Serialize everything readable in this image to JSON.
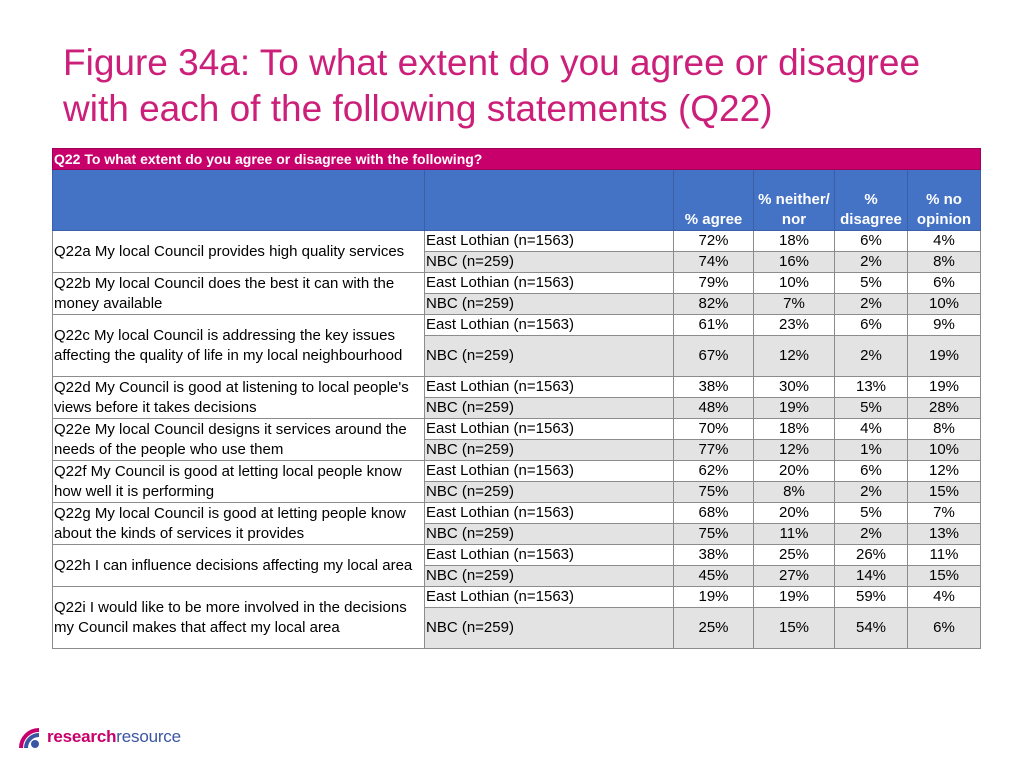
{
  "title": "Figure 34a: To what extent do you agree or disagree with each of the following statements (Q22)",
  "table": {
    "header_title": "Q22 To what extent do you agree or disagree with the following?",
    "columns": [
      "% agree",
      "% neither/ nor",
      "% disagree",
      "% no opinion"
    ],
    "rows": [
      {
        "question": "Q22a My local Council provides high quality services",
        "groups": [
          {
            "label": "East Lothian (n=1563)",
            "values": [
              "72%",
              "18%",
              "6%",
              "4%"
            ]
          },
          {
            "label": "NBC (n=259)",
            "values": [
              "74%",
              "16%",
              "2%",
              "8%"
            ]
          }
        ]
      },
      {
        "question": "Q22b My local Council does the best it can with the money available",
        "groups": [
          {
            "label": "East Lothian (n=1563)",
            "values": [
              "79%",
              "10%",
              "5%",
              "6%"
            ]
          },
          {
            "label": "NBC (n=259)",
            "values": [
              "82%",
              "7%",
              "2%",
              "10%"
            ]
          }
        ]
      },
      {
        "question": "Q22c My local Council is addressing the key issues affecting the quality of life in my local neighbourhood",
        "groups": [
          {
            "label": "East Lothian (n=1563)",
            "values": [
              "61%",
              "23%",
              "6%",
              "9%"
            ]
          },
          {
            "label": "NBC (n=259)",
            "values": [
              "67%",
              "12%",
              "2%",
              "19%"
            ]
          }
        ]
      },
      {
        "question": "Q22d My Council is good at listening to local people's views before it takes decisions",
        "groups": [
          {
            "label": "East Lothian (n=1563)",
            "values": [
              "38%",
              "30%",
              "13%",
              "19%"
            ]
          },
          {
            "label": "NBC (n=259)",
            "values": [
              "48%",
              "19%",
              "5%",
              "28%"
            ]
          }
        ]
      },
      {
        "question": "Q22e My local Council designs it services around the needs of the people who use them",
        "groups": [
          {
            "label": "East Lothian (n=1563)",
            "values": [
              "70%",
              "18%",
              "4%",
              "8%"
            ]
          },
          {
            "label": "NBC (n=259)",
            "values": [
              "77%",
              "12%",
              "1%",
              "10%"
            ]
          }
        ]
      },
      {
        "question": "Q22f My Council is good at letting local people know how well it is performing",
        "groups": [
          {
            "label": "East Lothian (n=1563)",
            "values": [
              "62%",
              "20%",
              "6%",
              "12%"
            ]
          },
          {
            "label": "NBC (n=259)",
            "values": [
              "75%",
              "8%",
              "2%",
              "15%"
            ]
          }
        ]
      },
      {
        "question": "Q22g My local Council is good at letting people know about the kinds of services it provides",
        "groups": [
          {
            "label": "East Lothian (n=1563)",
            "values": [
              "68%",
              "20%",
              "5%",
              "7%"
            ]
          },
          {
            "label": "NBC (n=259)",
            "values": [
              "75%",
              "11%",
              "2%",
              "13%"
            ]
          }
        ]
      },
      {
        "question": "Q22h I can influence decisions affecting my local area",
        "groups": [
          {
            "label": "East Lothian (n=1563)",
            "values": [
              "38%",
              "25%",
              "26%",
              "11%"
            ]
          },
          {
            "label": "NBC (n=259)",
            "values": [
              "45%",
              "27%",
              "14%",
              "15%"
            ]
          }
        ]
      },
      {
        "question": "Q22i I would like to be more involved in the decisions my Council makes that affect my local area",
        "groups": [
          {
            "label": "East Lothian (n=1563)",
            "values": [
              "19%",
              "19%",
              "59%",
              "4%"
            ]
          },
          {
            "label": "NBC (n=259)",
            "values": [
              "25%",
              "15%",
              "54%",
              "6%"
            ]
          }
        ]
      }
    ]
  },
  "logo": {
    "bold": "research",
    "regular": "resource",
    "icon": "research-resource-logo-icon"
  },
  "colors": {
    "title": "#cc1f7a",
    "header_magenta": "#c8006c",
    "header_blue": "#4472c4",
    "row_alt": "#e3e3e3",
    "logo_blue": "#3a55a3"
  }
}
